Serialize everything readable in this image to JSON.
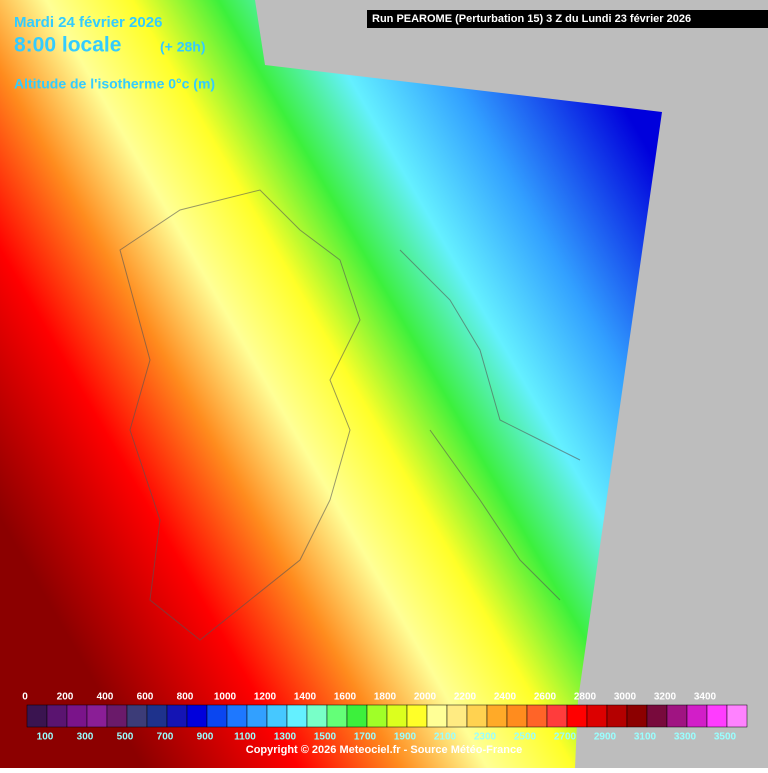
{
  "header": {
    "date": "Mardi 24 février 2026",
    "time": "8:00 locale",
    "lead": "(+ 28h)",
    "parameter": "Altitude de l'isotherme 0°c (m)",
    "run": "Run PEAROME (Perturbation 15) 3 Z du Lundi 23 février 2026"
  },
  "legend": {
    "labels": [
      0,
      100,
      200,
      300,
      400,
      500,
      600,
      700,
      800,
      900,
      1000,
      1100,
      1200,
      1300,
      1400,
      1500,
      1600,
      1700,
      1800,
      1900,
      2000,
      2100,
      2200,
      2300,
      2400,
      2500,
      2600,
      2700,
      2800,
      2900,
      3000,
      3100,
      3200,
      3300,
      3400,
      3500
    ],
    "colors": [
      "#3a1450",
      "#5a1470",
      "#7a148a",
      "#8a1e96",
      "#6a1a6a",
      "#3c3c78",
      "#1e328c",
      "#1414b4",
      "#0000dc",
      "#0a46f0",
      "#1e78ff",
      "#32a0ff",
      "#46c8ff",
      "#64f0ff",
      "#78ffc8",
      "#64ff78",
      "#3cf03c",
      "#a0ff28",
      "#dcff1e",
      "#ffff28",
      "#ffff96",
      "#ffeb82",
      "#ffd250",
      "#ffaa28",
      "#ff8c1e",
      "#ff6428",
      "#ff3c3c",
      "#ff0000",
      "#dc0000",
      "#b40000",
      "#8c0000",
      "#780a3c",
      "#a01482",
      "#d21ec8",
      "#ff3cff",
      "#ff82ff"
    ]
  },
  "footer": {
    "copyright": "Copyright © 2026 Meteociel.fr - Source Météo-France"
  }
}
